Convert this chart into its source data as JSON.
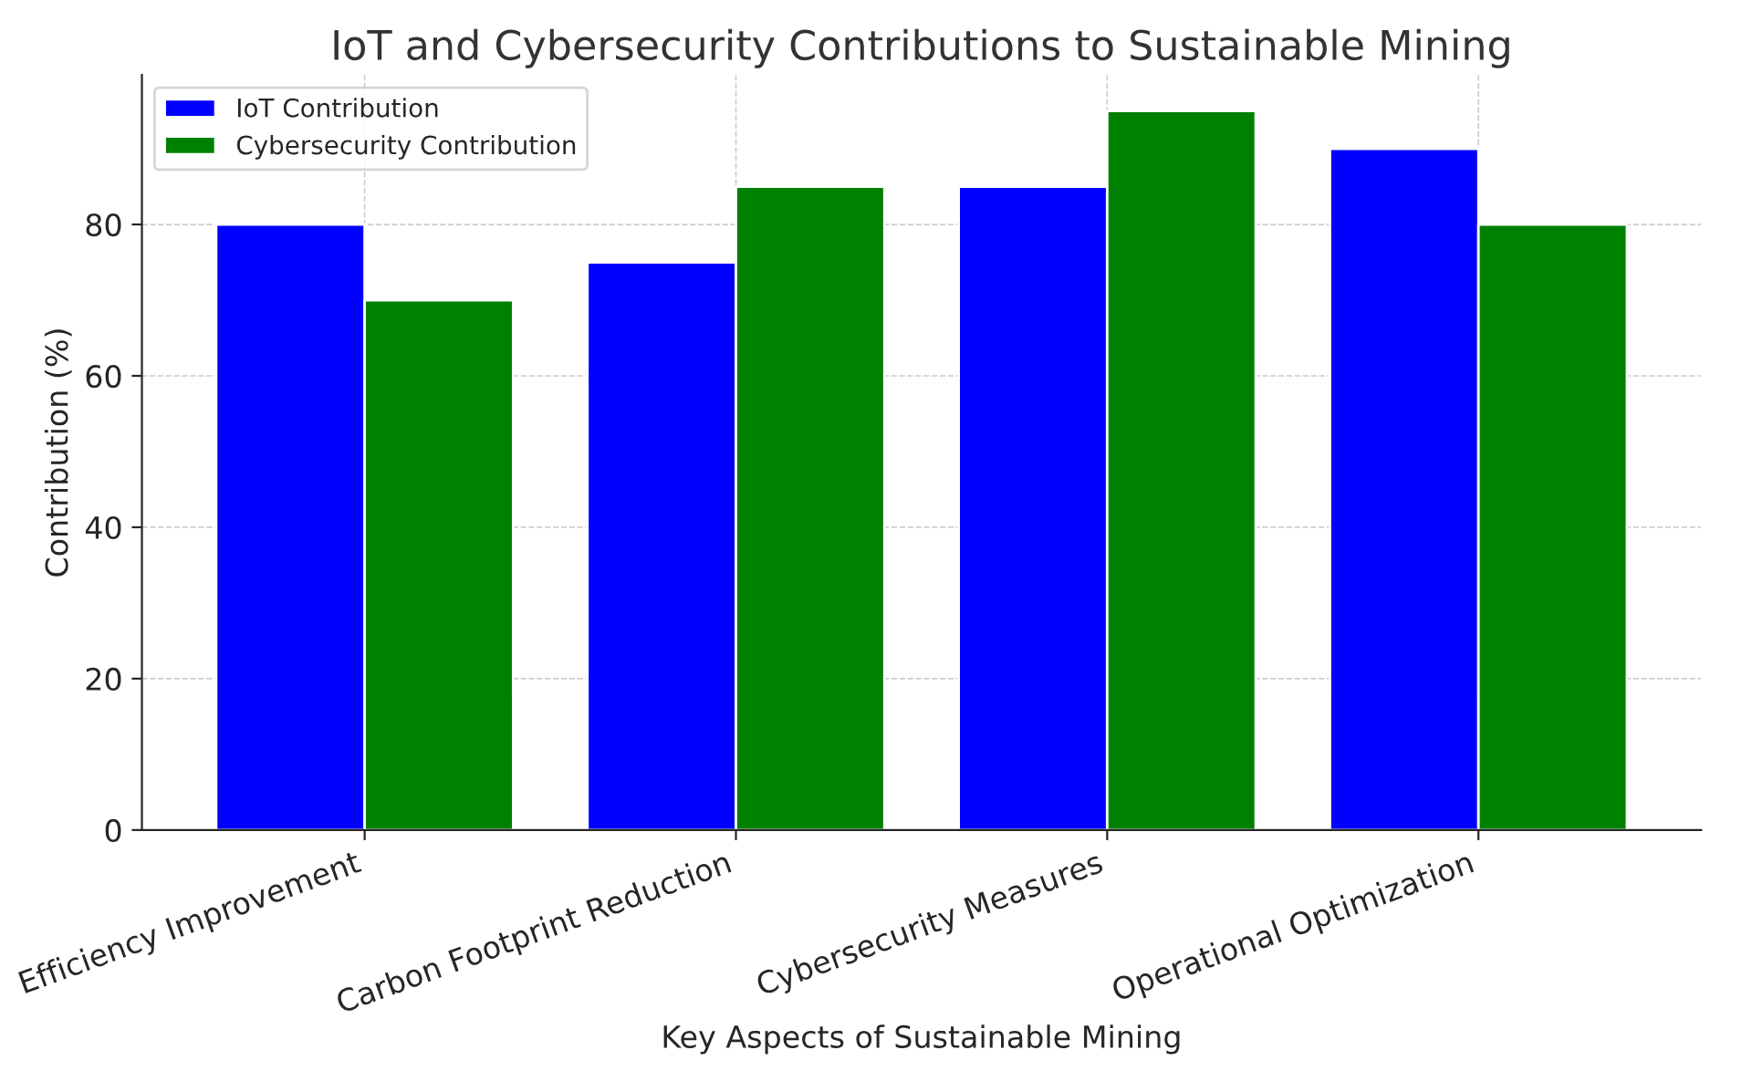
{
  "chart_data": {
    "type": "bar",
    "title": "IoT and Cybersecurity Contributions to Sustainable Mining",
    "xlabel": "Key Aspects of Sustainable Mining",
    "ylabel": "Contribution (%)",
    "categories": [
      "Efficiency Improvement",
      "Carbon Footprint Reduction",
      "Cybersecurity Measures",
      "Operational Optimization"
    ],
    "series": [
      {
        "name": "IoT Contribution",
        "color": "#0000ff",
        "values": [
          80,
          75,
          85,
          90
        ]
      },
      {
        "name": "Cybersecurity Contribution",
        "color": "#008000",
        "values": [
          70,
          85,
          95,
          80
        ]
      }
    ],
    "ylim": [
      0,
      99.75
    ],
    "yticks": [
      0,
      20,
      40,
      60,
      80
    ],
    "grid": true,
    "legend": "top left"
  }
}
